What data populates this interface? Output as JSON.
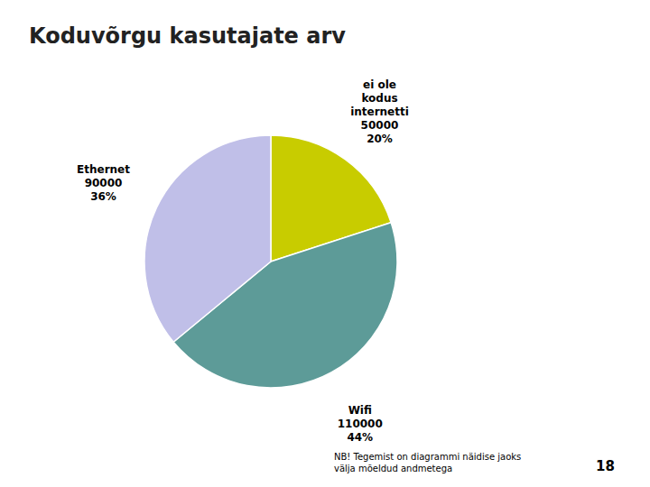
{
  "chart_data": {
    "type": "pie",
    "title": "Koduvõrgu kasutajate arv",
    "categories": [
      "ei ole\nkodus\ninternetti",
      "Wifi",
      "Ethernet"
    ],
    "values": [
      20,
      44,
      36
    ],
    "value_labels": [
      "20%",
      "44%",
      "36%"
    ],
    "counts": [
      50000,
      110000,
      90000
    ],
    "colors": [
      "#c8cc00",
      "#5d9b98",
      "#c0bfe8"
    ],
    "data_labels": true,
    "annotations": [
      "NB! Tegemist on diagrammi näidise jaoks\nvälja mõeldud andmetega",
      "18"
    ]
  }
}
